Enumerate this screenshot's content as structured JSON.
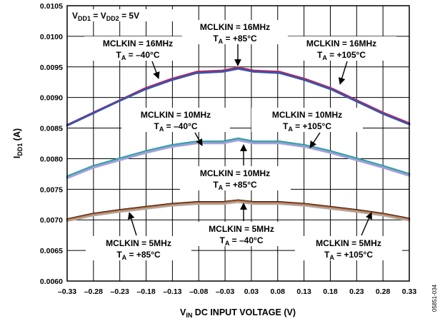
{
  "chart_data": {
    "type": "line",
    "title": "",
    "xlabel": "V_IN DC INPUT VOLTAGE (V)",
    "ylabel": "I_DD1 (A)",
    "xlim": [
      -0.33,
      0.33
    ],
    "ylim": [
      0.006,
      0.0105
    ],
    "grid": true,
    "x_ticks": [
      "–0.33",
      "–0.28",
      "–0.23",
      "–0.18",
      "–0.13",
      "–0.08",
      "–0.03",
      "0.03",
      "0.08",
      "0.13",
      "0.18",
      "0.23",
      "0.28",
      "0.33"
    ],
    "y_ticks": [
      "0.0060",
      "0.0065",
      "0.0070",
      "0.0075",
      "0.0080",
      "0.0085",
      "0.0090",
      "0.0095",
      "0.0100",
      "0.0105"
    ],
    "x": [
      -0.33,
      -0.28,
      -0.23,
      -0.18,
      -0.13,
      -0.08,
      -0.03,
      0.0,
      0.03,
      0.08,
      0.13,
      0.18,
      0.23,
      0.28,
      0.33
    ],
    "series": [
      {
        "label_key": "16MHz, TA = −40°C",
        "color": "#d5234a",
        "values": [
          0.00855,
          0.00875,
          0.00895,
          0.00915,
          0.0093,
          0.00942,
          0.00944,
          0.00949,
          0.00944,
          0.00942,
          0.0093,
          0.00915,
          0.00895,
          0.00875,
          0.00858
        ]
      },
      {
        "label_key": "16MHz, TA = +85°C",
        "color": "#8b2c8e",
        "values": [
          0.00855,
          0.00875,
          0.00895,
          0.00914,
          0.00929,
          0.00941,
          0.00943,
          0.00948,
          0.00943,
          0.00941,
          0.00929,
          0.00914,
          0.00894,
          0.00874,
          0.00857
        ]
      },
      {
        "label_key": "16MHz, TA = +105°C",
        "color": "#3a55a4",
        "values": [
          0.00854,
          0.00874,
          0.00894,
          0.00913,
          0.00928,
          0.0094,
          0.00942,
          0.00947,
          0.00942,
          0.0094,
          0.00928,
          0.00913,
          0.00893,
          0.00873,
          0.00856
        ]
      },
      {
        "label_key": "10MHz, TA = −40°C",
        "color": "#1e8f6e",
        "values": [
          0.00771,
          0.00788,
          0.008,
          0.00812,
          0.00822,
          0.00828,
          0.00828,
          0.00833,
          0.00828,
          0.00828,
          0.00822,
          0.00812,
          0.008,
          0.00788,
          0.00775
        ]
      },
      {
        "label_key": "10MHz, TA = +105°C",
        "color": "#4aa6c9",
        "values": [
          0.0077,
          0.00787,
          0.00799,
          0.00811,
          0.00821,
          0.00827,
          0.00827,
          0.00832,
          0.00827,
          0.00827,
          0.00821,
          0.00811,
          0.00799,
          0.00787,
          0.00774
        ]
      },
      {
        "label_key": "10MHz, TA = +85°C",
        "color": "#a9a0d8",
        "values": [
          0.00768,
          0.00785,
          0.00797,
          0.00809,
          0.00819,
          0.00825,
          0.00825,
          0.0083,
          0.00825,
          0.00825,
          0.00819,
          0.00809,
          0.00797,
          0.00785,
          0.00772
        ]
      },
      {
        "label_key": "5MHz, TA = −40°C",
        "color": "#111111",
        "values": [
          0.00701,
          0.0071,
          0.00716,
          0.00721,
          0.00726,
          0.00729,
          0.00729,
          0.00732,
          0.00729,
          0.00729,
          0.00726,
          0.00721,
          0.00716,
          0.0071,
          0.00702
        ]
      },
      {
        "label_key": "5MHz, TA = +85°C",
        "color": "#c0602a",
        "values": [
          0.007,
          0.00709,
          0.00715,
          0.0072,
          0.00725,
          0.00728,
          0.00728,
          0.00731,
          0.00728,
          0.00728,
          0.00725,
          0.0072,
          0.00715,
          0.00709,
          0.00701
        ]
      },
      {
        "label_key": "5MHz, TA = +105°C",
        "color": "#b0a8a0",
        "values": [
          0.00698,
          0.00707,
          0.00713,
          0.00718,
          0.00723,
          0.00726,
          0.00726,
          0.00729,
          0.00726,
          0.00726,
          0.00723,
          0.00718,
          0.00713,
          0.00707,
          0.00699
        ]
      }
    ],
    "annotations": {
      "supply": {
        "label": "V",
        "sub1": "DD1",
        "eq": " = V",
        "sub2": "DD2",
        "tail": " = 5V"
      },
      "a16_m40": {
        "line1": "MCLKIN = 16MHz",
        "t": "T",
        "sub": "A",
        "tail": " = –40°C"
      },
      "a16_85": {
        "line1": "MCLKIN = 16MHz",
        "t": "T",
        "sub": "A",
        "tail": " = +85°C"
      },
      "a16_105": {
        "line1": "MCLKIN = 16MHz",
        "t": "T",
        "sub": "A",
        "tail": " = +105°C"
      },
      "a10_m40": {
        "line1": "MCLKIN = 10MHz",
        "t": "T",
        "sub": "A",
        "tail": " = –40°C"
      },
      "a10_105": {
        "line1": "MCLKIN = 10MHz",
        "t": "T",
        "sub": "A",
        "tail": " = +105°C"
      },
      "a10_85": {
        "line1": "MCLKIN = 10MHz",
        "t": "T",
        "sub": "A",
        "tail": " = +85°C"
      },
      "a5_m40": {
        "line1": "MCLKIN = 5MHz",
        "t": "T",
        "sub": "A",
        "tail": " = –40°C"
      },
      "a5_85": {
        "line1": "MCLKIN = 5MHz",
        "t": "T",
        "sub": "A",
        "tail": " = +85°C"
      },
      "a5_105": {
        "line1": "MCLKIN = 5MHz",
        "t": "T",
        "sub": "A",
        "tail": " = +105°C"
      }
    },
    "axis_titles": {
      "y": {
        "main": "I",
        "sub": "DD1",
        "tail": " (A)"
      },
      "x": {
        "main": "V",
        "sub": "IN",
        "tail": " DC INPUT VOLTAGE (V)"
      }
    }
  },
  "figure_id": "05851-034"
}
